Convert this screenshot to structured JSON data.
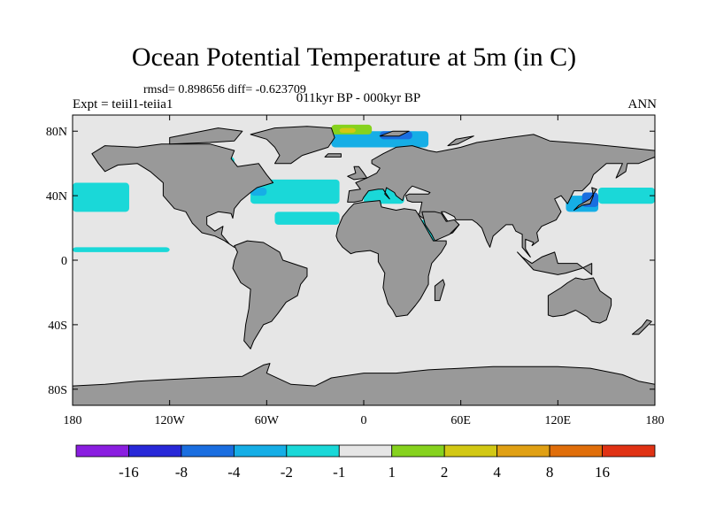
{
  "title": "Ocean Potential Temperature at 5m (in C)",
  "stats": "rmsd= 0.898656 diff= -0.623709",
  "experiment": "Expt = teiil1-teiia1",
  "period": "011kyr BP - 000kyr BP",
  "season": "ANN",
  "axes": {
    "lon_ticks": [
      {
        "lon": -180,
        "label": "180"
      },
      {
        "lon": -120,
        "label": "120W"
      },
      {
        "lon": -60,
        "label": "60W"
      },
      {
        "lon": 0,
        "label": "0"
      },
      {
        "lon": 60,
        "label": "60E"
      },
      {
        "lon": 120,
        "label": "120E"
      },
      {
        "lon": 180,
        "label": "180"
      }
    ],
    "lat_ticks": [
      {
        "lat": 80,
        "label": "80N"
      },
      {
        "lat": 40,
        "label": "40N"
      },
      {
        "lat": 0,
        "label": "0"
      },
      {
        "lat": -40,
        "label": "40S"
      },
      {
        "lat": -80,
        "label": "80S"
      }
    ],
    "lon_range": [
      -180,
      180
    ],
    "lat_range": [
      -90,
      90
    ]
  },
  "colors": {
    "land": "#999999",
    "ocean_neutral": "#e6e6e6",
    "coast": "#000000"
  },
  "colorbar": {
    "colors": [
      "#8a1ee0",
      "#2828d8",
      "#1a6ee0",
      "#16aee6",
      "#1ad8d8",
      "#e6e6e6",
      "#86d21e",
      "#d2c814",
      "#e0a014",
      "#e06e0a",
      "#e03214"
    ],
    "labels": [
      "-16",
      "-8",
      "-4",
      "-2",
      "-1",
      "1",
      "2",
      "4",
      "8",
      "16"
    ]
  },
  "anomaly_regions": [
    {
      "range": "-1 to -2",
      "color": "#1ad8d8",
      "lon": [
        -180,
        -145
      ],
      "lat": [
        30,
        48
      ]
    },
    {
      "range": "-1 to -2",
      "color": "#1ad8d8",
      "lon": [
        -180,
        -120
      ],
      "lat": [
        5,
        8
      ]
    },
    {
      "range": "-1 to -2",
      "color": "#1ad8d8",
      "lon": [
        -70,
        -15
      ],
      "lat": [
        35,
        50
      ]
    },
    {
      "range": "-1 to -2",
      "color": "#1ad8d8",
      "lon": [
        -55,
        -15
      ],
      "lat": [
        22,
        30
      ]
    },
    {
      "range": "-1 to -2",
      "color": "#1ad8d8",
      "lon": [
        -120,
        -80
      ],
      "lat": [
        56,
        64
      ]
    },
    {
      "range": "-1 to -2",
      "color": "#1ad8d8",
      "lon": [
        145,
        180
      ],
      "lat": [
        35,
        45
      ]
    },
    {
      "range": "-1 to -2",
      "color": "#1ad8d8",
      "lon": [
        0,
        25
      ],
      "lat": [
        35,
        45
      ]
    },
    {
      "range": "-1 to -2",
      "color": "#1ad8d8",
      "lon": [
        30,
        45
      ],
      "lat": [
        10,
        25
      ]
    },
    {
      "range": "-2 to -4",
      "color": "#16aee6",
      "lon": [
        125,
        145
      ],
      "lat": [
        30,
        40
      ]
    },
    {
      "range": "-2 to -4",
      "color": "#16aee6",
      "lon": [
        -70,
        -60
      ],
      "lat": [
        40,
        45
      ]
    },
    {
      "range": "-2 to -4",
      "color": "#16aee6",
      "lon": [
        -20,
        40
      ],
      "lat": [
        70,
        80
      ]
    },
    {
      "range": "-4 to -8",
      "color": "#1a6ee0",
      "lon": [
        135,
        145
      ],
      "lat": [
        33,
        42
      ]
    },
    {
      "range": "-4 to -8",
      "color": "#1a6ee0",
      "lon": [
        10,
        30
      ],
      "lat": [
        75,
        80
      ]
    },
    {
      "range": "1 to 2",
      "color": "#86d21e",
      "lon": [
        -20,
        5
      ],
      "lat": [
        78,
        84
      ]
    },
    {
      "range": "2 to 4",
      "color": "#d2c814",
      "lon": [
        -15,
        -5
      ],
      "lat": [
        79,
        82
      ]
    }
  ]
}
